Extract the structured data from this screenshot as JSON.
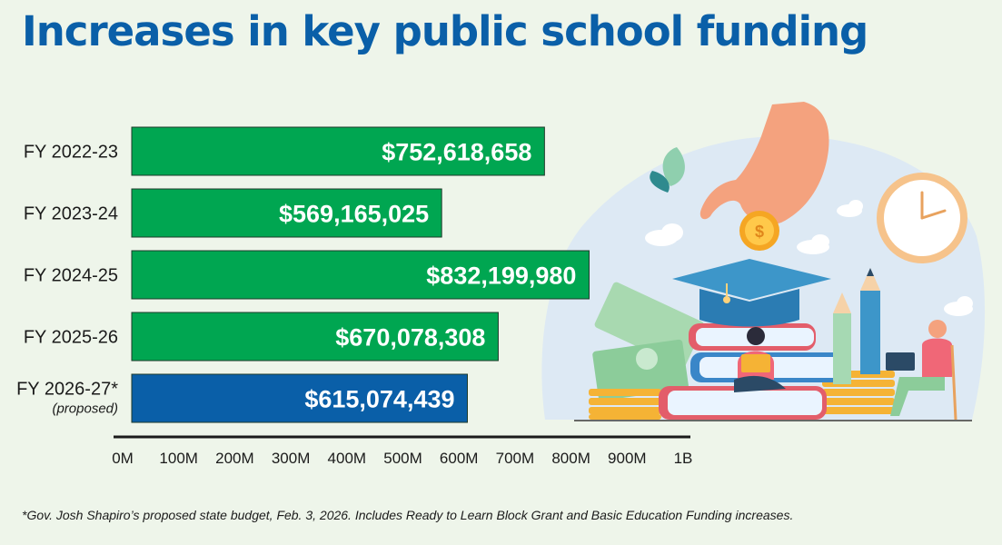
{
  "title": "Increases in key public school funding",
  "footnote": "*Gov. Josh Shapiro’s proposed state budget, Feb. 3, 2026. Includes Ready to Learn Block Grant and Basic Education Funding increases.",
  "colors": {
    "bar": "#00a651",
    "bar_highlight": "#0a5fa8",
    "title": "#0a5fa8",
    "background": "#eef5ea"
  },
  "illustration": {
    "icons": [
      "hand-icon",
      "coin-icon",
      "clock-icon",
      "graduation-cap-icon",
      "books-icon",
      "pencil-icon",
      "money-icon",
      "student-icon",
      "laptop-user-icon",
      "cloud-icon",
      "leaf-icon"
    ]
  },
  "chart_data": {
    "type": "bar",
    "orientation": "horizontal",
    "title": "Increases in key public school funding",
    "categories": [
      "FY 2022-23",
      "FY 2023-24",
      "FY 2024-25",
      "FY 2025-26",
      "FY 2026-27*"
    ],
    "category_sublabels": [
      "",
      "",
      "",
      "",
      "(proposed)"
    ],
    "values": [
      752618658,
      569165025,
      832199980,
      670078308,
      615074439
    ],
    "value_labels": [
      "$752,618,658",
      "$569,165,025",
      "$832,199,980",
      "$670,078,308",
      "$615,074,439"
    ],
    "highlight": [
      false,
      false,
      false,
      false,
      true
    ],
    "xlim": [
      0,
      1000000000
    ],
    "xticks": [
      "0M",
      "100M",
      "200M",
      "300M",
      "400M",
      "500M",
      "600M",
      "700M",
      "800M",
      "900M",
      "1B"
    ],
    "xlabel": "",
    "ylabel": "",
    "grid": false,
    "legend": "none"
  }
}
